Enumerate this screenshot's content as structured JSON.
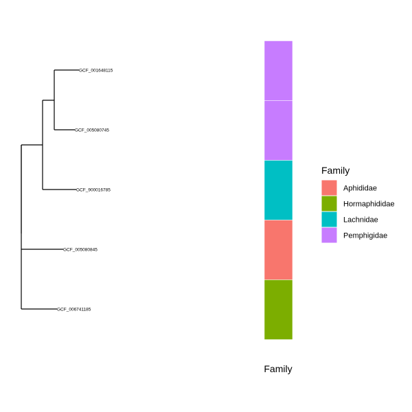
{
  "tree": {
    "root": {
      "children": [
        {
          "children": [
            {
              "children": [
                {
                  "tip": "GCF_001648115"
                },
                {
                  "tip": "GCF_005080745"
                }
              ]
            },
            {
              "tip": "GCF_900016785"
            }
          ]
        },
        {
          "tip": "GCF_005080845"
        },
        {
          "tip": "GCF_006741185"
        }
      ]
    }
  },
  "heatmap": {
    "column_label": "Family",
    "cells": [
      {
        "tip": "GCF_001648115",
        "family": "Pemphigidae"
      },
      {
        "tip": "GCF_005080745",
        "family": "Pemphigidae"
      },
      {
        "tip": "GCF_900016785",
        "family": "Lachnidae"
      },
      {
        "tip": "GCF_005080845",
        "family": "Aphididae"
      },
      {
        "tip": "GCF_006741185",
        "family": "Hormaphididae"
      }
    ]
  },
  "legend": {
    "title": "Family",
    "items": [
      {
        "label": "Aphididae",
        "color": "#F8766D"
      },
      {
        "label": "Hormaphididae",
        "color": "#7CAE00"
      },
      {
        "label": "Lachnidae",
        "color": "#00BFC4"
      },
      {
        "label": "Pemphigidae",
        "color": "#C77CFF"
      }
    ]
  }
}
